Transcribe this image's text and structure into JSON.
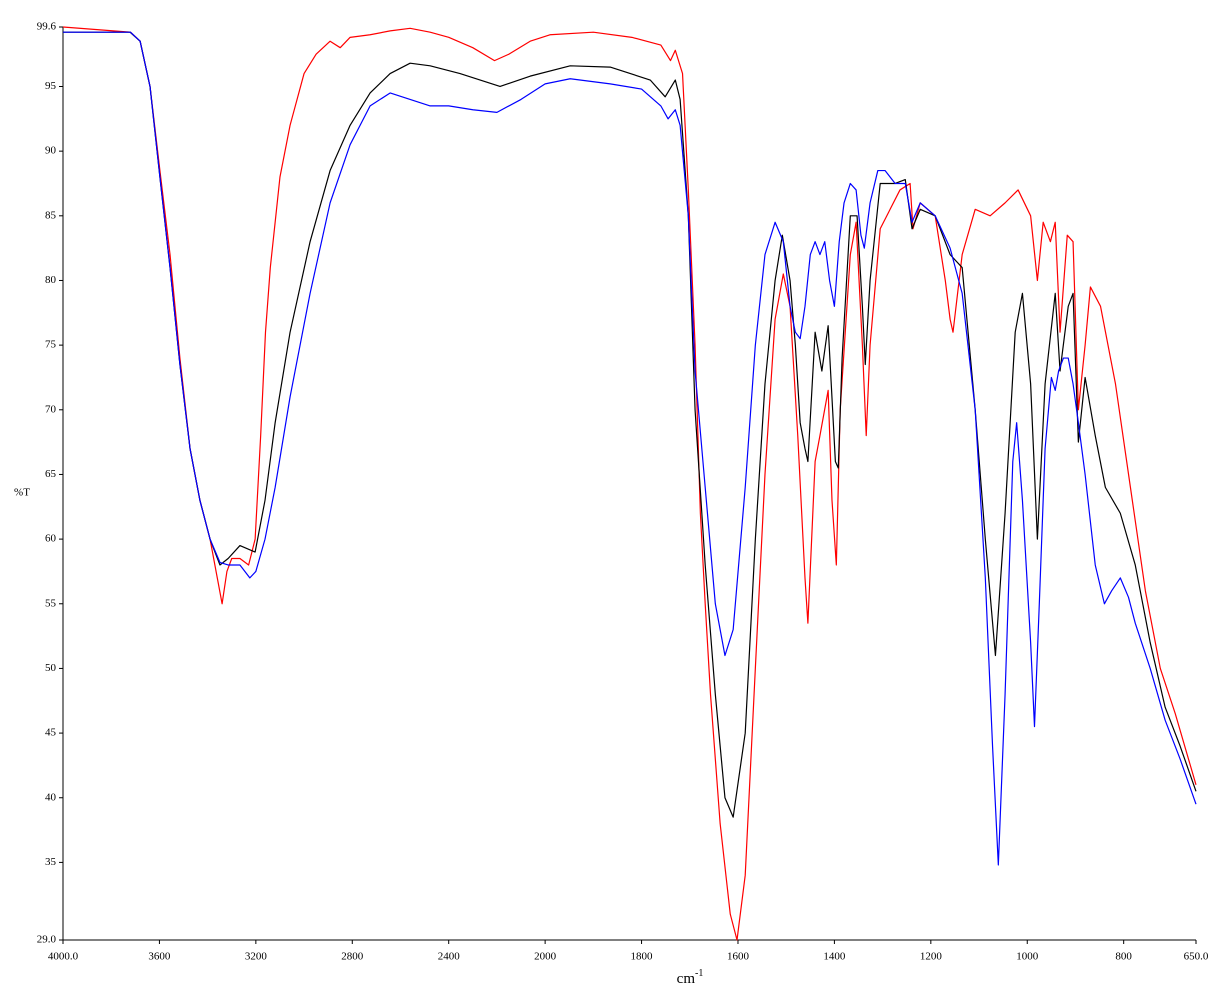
{
  "chart_data": {
    "type": "line",
    "y_label": "%T",
    "x_label": "cm",
    "x_label_superscript": "-1",
    "xlim": [
      4000,
      650
    ],
    "x_scale_break": 2000,
    "x_scale_factor_below_break": 2,
    "xticks": [
      {
        "value": 4000,
        "label": "4000.0"
      },
      3600,
      3200,
      2800,
      2400,
      2000,
      1800,
      1600,
      1400,
      1200,
      1000,
      800,
      {
        "value": 650,
        "label": "650.0"
      }
    ],
    "ylim": [
      29,
      99.6
    ],
    "yticks": [
      {
        "value": 29,
        "label": "29.0"
      },
      35,
      40,
      45,
      50,
      55,
      60,
      65,
      70,
      75,
      80,
      85,
      90,
      95,
      99.6
    ],
    "series": [
      {
        "color": "#ff0000",
        "x": [
          4000,
          3720,
          3680,
          3639,
          3598,
          3556,
          3515,
          3473,
          3432,
          3390,
          3360,
          3340,
          3320,
          3300,
          3266,
          3230,
          3203,
          3180,
          3160,
          3140,
          3120,
          3100,
          3058,
          3000,
          2950,
          2892,
          2850,
          2809,
          2726,
          2643,
          2560,
          2477,
          2400,
          2300,
          2210,
          2150,
          2062,
          1990,
          1900,
          1820,
          1760,
          1740,
          1730,
          1715,
          1703,
          1689,
          1678,
          1668,
          1657,
          1637,
          1616,
          1602,
          1585,
          1564,
          1544,
          1523,
          1506,
          1492,
          1476,
          1461,
          1455,
          1440,
          1430,
          1413,
          1405,
          1396,
          1388,
          1367,
          1355,
          1342,
          1334,
          1326,
          1305,
          1264,
          1243,
          1237,
          1222,
          1191,
          1170,
          1160,
          1154,
          1135,
          1108,
          1077,
          1046,
          1019,
          993,
          979,
          967,
          952,
          942,
          932,
          917,
          905,
          894,
          880,
          869,
          848,
          817,
          786,
          755,
          724,
          693,
          650
        ],
        "values": [
          99.6,
          99.2,
          98.5,
          95,
          88.5,
          82,
          74,
          67,
          63,
          60,
          57,
          55,
          57.5,
          58.5,
          58.5,
          58,
          60,
          68,
          76,
          81,
          84.5,
          88,
          92,
          96,
          97.5,
          98.5,
          98,
          98.8,
          99,
          99.3,
          99.5,
          99.2,
          98.8,
          98,
          97,
          97.5,
          98.5,
          99,
          99.2,
          98.8,
          98.2,
          97,
          97.8,
          96,
          87,
          75,
          62,
          55,
          48,
          38,
          31,
          29,
          34,
          50,
          65,
          77,
          80.5,
          78,
          68,
          57,
          53.5,
          66,
          68,
          71.5,
          63,
          58,
          70,
          82,
          84.5,
          75,
          68,
          75,
          84,
          87,
          87.5,
          84,
          86,
          85,
          80,
          77,
          76,
          82,
          85.5,
          85,
          86,
          87,
          85,
          80,
          84.5,
          83,
          84.5,
          76,
          83.5,
          83,
          70,
          75,
          79.5,
          78,
          72,
          64,
          56,
          50,
          46.5,
          41
        ]
      },
      {
        "color": "#000000",
        "x": [
          4000,
          3722,
          3680,
          3639,
          3598,
          3556,
          3515,
          3473,
          3432,
          3390,
          3349,
          3315,
          3266,
          3203,
          3162,
          3120,
          3058,
          2975,
          2892,
          2809,
          2726,
          2643,
          2560,
          2477,
          2353,
          2187,
          2062,
          1948,
          1865,
          1782,
          1751,
          1730,
          1720,
          1703,
          1689,
          1668,
          1647,
          1627,
          1610,
          1585,
          1564,
          1544,
          1523,
          1508,
          1492,
          1481,
          1471,
          1461,
          1455,
          1440,
          1426,
          1413,
          1398,
          1392,
          1384,
          1367,
          1353,
          1342,
          1336,
          1326,
          1305,
          1274,
          1253,
          1239,
          1222,
          1191,
          1160,
          1135,
          1108,
          1087,
          1066,
          1046,
          1025,
          1010,
          993,
          979,
          963,
          942,
          932,
          915,
          905,
          894,
          880,
          859,
          838,
          807,
          776,
          745,
          714,
          683,
          650
        ],
        "values": [
          99.2,
          99.2,
          98.5,
          95,
          88,
          81,
          73.5,
          67,
          63,
          60,
          58,
          58.5,
          59.5,
          59,
          63,
          69,
          76,
          83,
          88.5,
          92,
          94.5,
          96,
          96.8,
          96.6,
          96,
          95,
          95.8,
          96.6,
          96.5,
          95.5,
          94.2,
          95.5,
          94,
          85,
          70,
          58,
          48,
          40,
          38.5,
          45,
          60,
          72,
          80,
          83.5,
          80,
          75,
          69,
          67,
          66,
          76,
          73,
          76.5,
          66,
          65.5,
          74,
          85,
          85,
          78,
          73.5,
          80,
          87.5,
          87.5,
          87.8,
          84,
          85.5,
          85,
          82,
          81,
          70,
          60,
          51,
          62,
          76,
          79,
          72,
          60,
          72,
          79,
          73,
          78,
          79,
          67.5,
          72.5,
          68,
          64,
          62,
          58,
          52,
          47,
          44,
          40.5
        ]
      },
      {
        "color": "#0000ff",
        "x": [
          4000,
          3720,
          3680,
          3639,
          3598,
          3556,
          3515,
          3473,
          3432,
          3390,
          3349,
          3315,
          3266,
          3225,
          3200,
          3162,
          3120,
          3058,
          2975,
          2892,
          2809,
          2726,
          2643,
          2560,
          2477,
          2400,
          2300,
          2200,
          2100,
          2000,
          1948,
          1865,
          1800,
          1760,
          1745,
          1730,
          1720,
          1703,
          1689,
          1668,
          1647,
          1627,
          1610,
          1585,
          1564,
          1544,
          1523,
          1506,
          1492,
          1481,
          1471,
          1461,
          1450,
          1440,
          1430,
          1420,
          1410,
          1400,
          1390,
          1380,
          1367,
          1355,
          1345,
          1338,
          1326,
          1310,
          1295,
          1274,
          1253,
          1239,
          1222,
          1191,
          1160,
          1135,
          1108,
          1087,
          1072,
          1060,
          1046,
          1030,
          1022,
          1010,
          993,
          985,
          975,
          963,
          950,
          942,
          935,
          925,
          915,
          905,
          894,
          880,
          859,
          840,
          825,
          807,
          790,
          776,
          745,
          714,
          683,
          650
        ],
        "values": [
          99.2,
          99.2,
          98.5,
          95,
          88,
          81,
          73.5,
          67,
          63,
          60,
          58.2,
          58,
          58,
          57,
          57.5,
          60,
          64,
          71,
          79,
          86,
          90.5,
          93.5,
          94.5,
          94,
          93.5,
          93.5,
          93.2,
          93,
          94,
          95.2,
          95.6,
          95.2,
          94.8,
          93.5,
          92.5,
          93.2,
          92,
          85,
          73,
          64,
          55,
          51,
          53,
          64,
          75,
          82,
          84.5,
          83,
          78,
          76,
          75.5,
          78,
          82,
          83,
          82,
          83,
          80,
          78,
          83,
          86,
          87.5,
          87,
          83.5,
          82.5,
          86,
          88.5,
          88.5,
          87.5,
          87.5,
          84.5,
          86,
          85,
          82.5,
          79,
          70,
          57,
          44,
          34.8,
          48,
          66,
          69,
          63,
          52,
          45.5,
          55,
          67,
          72.5,
          71.5,
          73,
          74,
          74,
          72,
          69,
          65,
          58,
          55,
          56,
          57,
          55.5,
          53.5,
          50,
          46,
          43,
          39.5
        ]
      }
    ]
  }
}
